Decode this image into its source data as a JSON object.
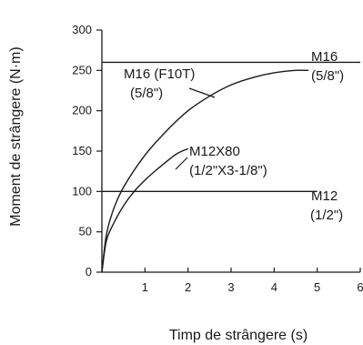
{
  "chart_data": {
    "type": "line",
    "xlabel": "Timp de strângere (s)",
    "ylabel": "Moment de strângere (N·m)",
    "xlim": [
      0,
      6
    ],
    "ylim": [
      0,
      300
    ],
    "x_ticks": [
      "1",
      "2",
      "3",
      "4",
      "5",
      "6"
    ],
    "y_ticks": [
      "0",
      "50",
      "100",
      "150",
      "200",
      "250",
      "300"
    ],
    "grid": false,
    "series": [
      {
        "name": "M16 (5/8\")",
        "x": [
          0,
          6
        ],
        "y": [
          260,
          260
        ]
      },
      {
        "name": "M12 (1/2\")",
        "x": [
          0,
          5
        ],
        "y": [
          100,
          100
        ]
      },
      {
        "name": "M16 (F10T) (5/8\")",
        "x": [
          0,
          0.1,
          0.25,
          0.5,
          1,
          1.5,
          2,
          2.5,
          3,
          3.5,
          4,
          4.5,
          4.8
        ],
        "y": [
          0,
          45,
          75,
          105,
          145,
          175,
          200,
          218,
          232,
          241,
          247,
          250,
          250
        ]
      },
      {
        "name": "M12X80 (1/2\"X3-1/8\")",
        "x": [
          0,
          0.1,
          0.25,
          0.5,
          0.75,
          1,
          1.25,
          1.5,
          1.75,
          2.0
        ],
        "y": [
          0,
          38,
          58,
          82,
          100,
          114,
          126,
          137,
          147,
          153
        ]
      }
    ],
    "annotations": [
      {
        "id": "m16-right",
        "lines": [
          "M16",
          "(5/8\")"
        ]
      },
      {
        "id": "m16-f10t",
        "lines": [
          "M16 (F10T)",
          "(5/8\")"
        ]
      },
      {
        "id": "m12x80",
        "lines": [
          "M12X80",
          "(1/2\"X3-1/8\")"
        ]
      },
      {
        "id": "m12-right",
        "lines": [
          "M12",
          "(1/2\")"
        ]
      }
    ]
  }
}
